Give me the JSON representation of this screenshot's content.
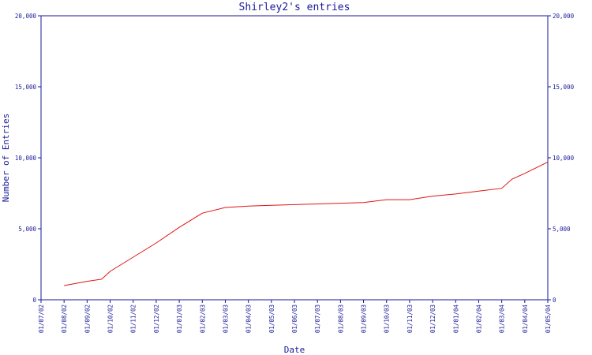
{
  "chart_data": {
    "type": "line",
    "title": "Shirley2's entries",
    "xlabel": "Date",
    "ylabel": "Number of Entries",
    "ylim": [
      0,
      20000
    ],
    "y_ticks": [
      0,
      5000,
      10000,
      15000,
      20000
    ],
    "y_tick_labels": [
      "0",
      "5,000",
      "10,000",
      "15,000",
      "20,000"
    ],
    "x_tick_labels": [
      "01/07/02",
      "01/08/02",
      "01/09/02",
      "01/10/02",
      "01/11/02",
      "01/12/02",
      "01/01/03",
      "01/02/03",
      "01/03/03",
      "01/04/03",
      "01/05/03",
      "01/06/03",
      "01/07/03",
      "01/08/03",
      "01/09/03",
      "01/10/03",
      "01/11/03",
      "01/12/03",
      "01/01/04",
      "01/02/04",
      "01/03/04",
      "01/04/04",
      "01/05/04"
    ],
    "grid": false,
    "legend": "none",
    "colors": {
      "axis": "#1a1a99",
      "series": "#e01414"
    },
    "series": [
      {
        "x": [
          "2002-08-01",
          "2002-09-01",
          "2002-09-20",
          "2002-10-01",
          "2002-11-01",
          "2002-12-01",
          "2003-01-01",
          "2003-02-01",
          "2003-03-01",
          "2003-04-01",
          "2003-05-01",
          "2003-06-01",
          "2003-07-01",
          "2003-08-01",
          "2003-09-01",
          "2003-10-01",
          "2003-11-01",
          "2003-12-01",
          "2004-01-01",
          "2004-02-01",
          "2004-03-01",
          "2004-03-15",
          "2004-04-01",
          "2004-05-01"
        ],
        "values": [
          1000,
          1300,
          1450,
          2000,
          3000,
          4000,
          5100,
          6100,
          6500,
          6600,
          6650,
          6700,
          6750,
          6800,
          6850,
          7050,
          7050,
          7300,
          7450,
          7650,
          7850,
          8500,
          8900,
          9700
        ]
      }
    ]
  }
}
